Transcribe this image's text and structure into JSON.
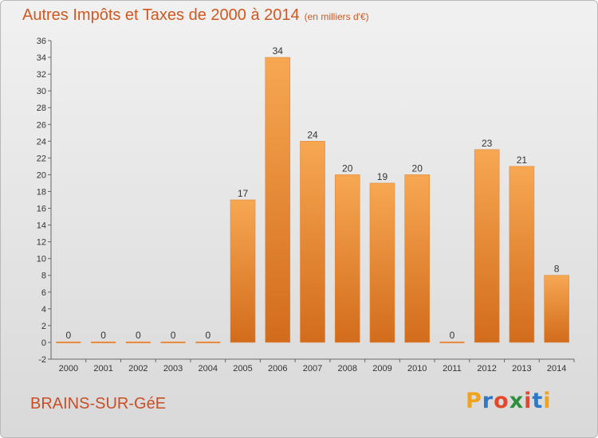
{
  "header": {
    "title": "Autres Impôts et Taxes de 2000 à 2014",
    "subtitle": "(en milliers d'€)"
  },
  "footer": {
    "town": "BRAINS-SUR-GéE",
    "logo_letters": [
      "P",
      "r",
      "o",
      "x",
      "i",
      "t",
      "i"
    ],
    "logo_colors": [
      "#f1a31c",
      "#2f78c8",
      "#e4472c",
      "#2d8f3f",
      "#e4472c",
      "#2f78c8",
      "#f1a31c"
    ]
  },
  "chart_data": {
    "type": "bar",
    "categories": [
      "2000",
      "2001",
      "2002",
      "2003",
      "2004",
      "2005",
      "2006",
      "2007",
      "2008",
      "2009",
      "2010",
      "2011",
      "2012",
      "2013",
      "2014"
    ],
    "values": [
      0,
      0,
      0,
      0,
      0,
      17,
      34,
      24,
      20,
      19,
      20,
      0,
      23,
      21,
      8
    ],
    "title": "Autres Impôts et Taxes de 2000 à 2014",
    "xlabel": "",
    "ylabel": "",
    "ylim": [
      -2,
      36
    ],
    "yticks": [
      -2,
      0,
      2,
      4,
      6,
      8,
      10,
      12,
      14,
      16,
      18,
      20,
      22,
      24,
      26,
      28,
      30,
      32,
      34,
      36
    ],
    "grid": false,
    "bar_color_light": "#f7a752",
    "bar_color_dark": "#d26c1c",
    "zero_line_color": "#e88a3a"
  }
}
